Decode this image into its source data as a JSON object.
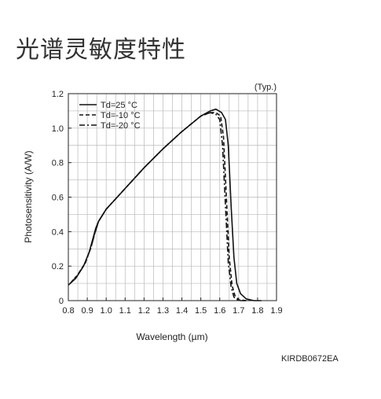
{
  "title": "光谱灵敏度特性",
  "code": "KIRDB0672EA",
  "chart_data": {
    "type": "line",
    "note": "(Typ.)",
    "xlabel": "Wavelength (µm)",
    "ylabel": "Photosensitivity (A/W)",
    "xlim": [
      0.8,
      1.9
    ],
    "ylim": [
      0,
      1.2
    ],
    "xticks": [
      "0.8",
      "0.9",
      "1.0",
      "1.1",
      "1.2",
      "1.3",
      "1.4",
      "1.5",
      "1.6",
      "1.7",
      "1.8",
      "1.9"
    ],
    "yticks": [
      "0",
      "0.2",
      "0.4",
      "0.6",
      "0.8",
      "1.0",
      "1.2"
    ],
    "grid": true,
    "legend_position": "top-left",
    "series": [
      {
        "name": "Td=25 °C",
        "style": "solid",
        "points": [
          [
            0.8,
            0.09
          ],
          [
            0.84,
            0.13
          ],
          [
            0.88,
            0.2
          ],
          [
            0.91,
            0.28
          ],
          [
            0.93,
            0.36
          ],
          [
            0.945,
            0.42
          ],
          [
            0.96,
            0.46
          ],
          [
            1.0,
            0.53
          ],
          [
            1.1,
            0.65
          ],
          [
            1.2,
            0.77
          ],
          [
            1.3,
            0.88
          ],
          [
            1.4,
            0.98
          ],
          [
            1.5,
            1.07
          ],
          [
            1.55,
            1.1
          ],
          [
            1.58,
            1.11
          ],
          [
            1.61,
            1.09
          ],
          [
            1.63,
            1.05
          ],
          [
            1.645,
            0.9
          ],
          [
            1.66,
            0.55
          ],
          [
            1.675,
            0.25
          ],
          [
            1.69,
            0.1
          ],
          [
            1.71,
            0.04
          ],
          [
            1.74,
            0.01
          ],
          [
            1.78,
            0.0
          ],
          [
            1.82,
            0.0
          ]
        ]
      },
      {
        "name": "Td=-10 °C",
        "style": "dashed",
        "points": [
          [
            0.81,
            0.1
          ],
          [
            0.85,
            0.15
          ],
          [
            0.89,
            0.22
          ],
          [
            0.92,
            0.31
          ],
          [
            0.94,
            0.39
          ],
          [
            0.96,
            0.46
          ],
          [
            1.0,
            0.53
          ],
          [
            1.1,
            0.65
          ],
          [
            1.2,
            0.77
          ],
          [
            1.3,
            0.88
          ],
          [
            1.4,
            0.98
          ],
          [
            1.5,
            1.07
          ],
          [
            1.55,
            1.09
          ],
          [
            1.58,
            1.09
          ],
          [
            1.605,
            1.07
          ],
          [
            1.62,
            0.95
          ],
          [
            1.635,
            0.6
          ],
          [
            1.65,
            0.25
          ],
          [
            1.665,
            0.09
          ],
          [
            1.68,
            0.03
          ],
          [
            1.7,
            0.005
          ],
          [
            1.74,
            0.0
          ]
        ]
      },
      {
        "name": "Td=-20 °C",
        "style": "dashdot",
        "points": [
          [
            0.81,
            0.1
          ],
          [
            0.85,
            0.15
          ],
          [
            0.89,
            0.22
          ],
          [
            0.92,
            0.31
          ],
          [
            0.94,
            0.39
          ],
          [
            0.96,
            0.46
          ],
          [
            1.0,
            0.53
          ],
          [
            1.1,
            0.65
          ],
          [
            1.2,
            0.77
          ],
          [
            1.3,
            0.88
          ],
          [
            1.4,
            0.98
          ],
          [
            1.5,
            1.07
          ],
          [
            1.55,
            1.09
          ],
          [
            1.58,
            1.08
          ],
          [
            1.6,
            1.05
          ],
          [
            1.615,
            0.9
          ],
          [
            1.63,
            0.55
          ],
          [
            1.645,
            0.22
          ],
          [
            1.66,
            0.08
          ],
          [
            1.675,
            0.02
          ],
          [
            1.7,
            0.0
          ],
          [
            1.74,
            0.0
          ]
        ]
      }
    ]
  }
}
